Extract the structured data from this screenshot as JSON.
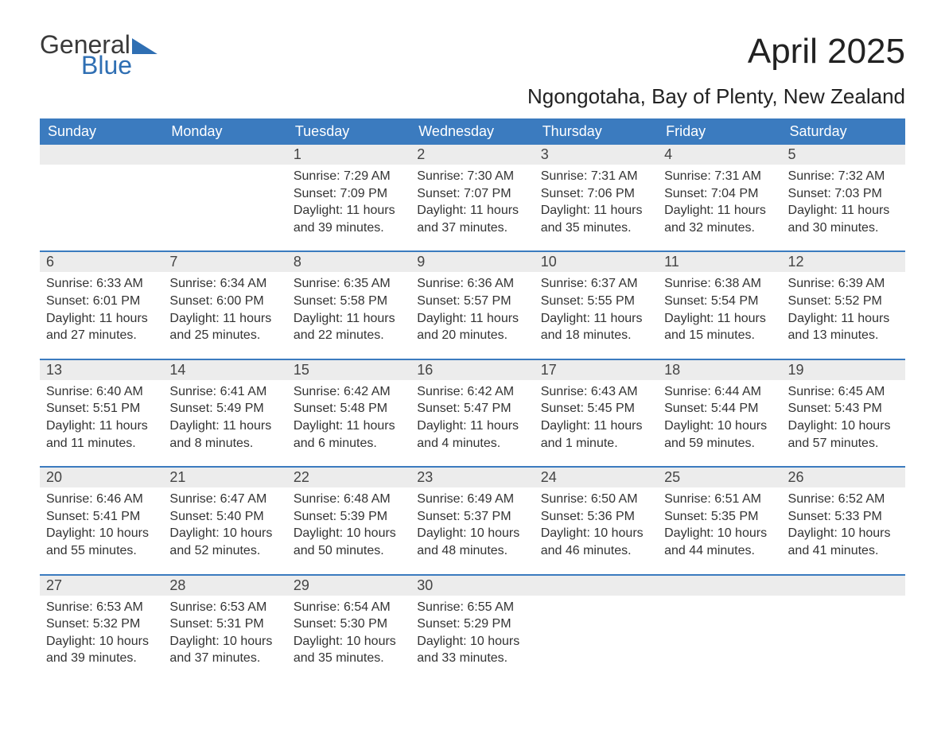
{
  "logo": {
    "text1": "General",
    "text2": "Blue"
  },
  "title": "April 2025",
  "subtitle": "Ngongotaha, Bay of Plenty, New Zealand",
  "colors": {
    "header_bg": "#3b7bbf",
    "header_text": "#ffffff",
    "daynum_bg": "#ececec",
    "row_border": "#3b7bbf",
    "body_text": "#333333",
    "logo_gray": "#3a3a3a",
    "logo_blue": "#2f6fb3",
    "page_bg": "#ffffff"
  },
  "typography": {
    "title_fontsize": 44,
    "subtitle_fontsize": 26,
    "header_fontsize": 18,
    "daynum_fontsize": 18,
    "cell_fontsize": 16,
    "logo_fontsize": 32
  },
  "day_headers": [
    "Sunday",
    "Monday",
    "Tuesday",
    "Wednesday",
    "Thursday",
    "Friday",
    "Saturday"
  ],
  "weeks": [
    [
      null,
      null,
      {
        "n": "1",
        "sr": "7:29 AM",
        "ss": "7:09 PM",
        "dl": "11 hours and 39 minutes."
      },
      {
        "n": "2",
        "sr": "7:30 AM",
        "ss": "7:07 PM",
        "dl": "11 hours and 37 minutes."
      },
      {
        "n": "3",
        "sr": "7:31 AM",
        "ss": "7:06 PM",
        "dl": "11 hours and 35 minutes."
      },
      {
        "n": "4",
        "sr": "7:31 AM",
        "ss": "7:04 PM",
        "dl": "11 hours and 32 minutes."
      },
      {
        "n": "5",
        "sr": "7:32 AM",
        "ss": "7:03 PM",
        "dl": "11 hours and 30 minutes."
      }
    ],
    [
      {
        "n": "6",
        "sr": "6:33 AM",
        "ss": "6:01 PM",
        "dl": "11 hours and 27 minutes."
      },
      {
        "n": "7",
        "sr": "6:34 AM",
        "ss": "6:00 PM",
        "dl": "11 hours and 25 minutes."
      },
      {
        "n": "8",
        "sr": "6:35 AM",
        "ss": "5:58 PM",
        "dl": "11 hours and 22 minutes."
      },
      {
        "n": "9",
        "sr": "6:36 AM",
        "ss": "5:57 PM",
        "dl": "11 hours and 20 minutes."
      },
      {
        "n": "10",
        "sr": "6:37 AM",
        "ss": "5:55 PM",
        "dl": "11 hours and 18 minutes."
      },
      {
        "n": "11",
        "sr": "6:38 AM",
        "ss": "5:54 PM",
        "dl": "11 hours and 15 minutes."
      },
      {
        "n": "12",
        "sr": "6:39 AM",
        "ss": "5:52 PM",
        "dl": "11 hours and 13 minutes."
      }
    ],
    [
      {
        "n": "13",
        "sr": "6:40 AM",
        "ss": "5:51 PM",
        "dl": "11 hours and 11 minutes."
      },
      {
        "n": "14",
        "sr": "6:41 AM",
        "ss": "5:49 PM",
        "dl": "11 hours and 8 minutes."
      },
      {
        "n": "15",
        "sr": "6:42 AM",
        "ss": "5:48 PM",
        "dl": "11 hours and 6 minutes."
      },
      {
        "n": "16",
        "sr": "6:42 AM",
        "ss": "5:47 PM",
        "dl": "11 hours and 4 minutes."
      },
      {
        "n": "17",
        "sr": "6:43 AM",
        "ss": "5:45 PM",
        "dl": "11 hours and 1 minute."
      },
      {
        "n": "18",
        "sr": "6:44 AM",
        "ss": "5:44 PM",
        "dl": "10 hours and 59 minutes."
      },
      {
        "n": "19",
        "sr": "6:45 AM",
        "ss": "5:43 PM",
        "dl": "10 hours and 57 minutes."
      }
    ],
    [
      {
        "n": "20",
        "sr": "6:46 AM",
        "ss": "5:41 PM",
        "dl": "10 hours and 55 minutes."
      },
      {
        "n": "21",
        "sr": "6:47 AM",
        "ss": "5:40 PM",
        "dl": "10 hours and 52 minutes."
      },
      {
        "n": "22",
        "sr": "6:48 AM",
        "ss": "5:39 PM",
        "dl": "10 hours and 50 minutes."
      },
      {
        "n": "23",
        "sr": "6:49 AM",
        "ss": "5:37 PM",
        "dl": "10 hours and 48 minutes."
      },
      {
        "n": "24",
        "sr": "6:50 AM",
        "ss": "5:36 PM",
        "dl": "10 hours and 46 minutes."
      },
      {
        "n": "25",
        "sr": "6:51 AM",
        "ss": "5:35 PM",
        "dl": "10 hours and 44 minutes."
      },
      {
        "n": "26",
        "sr": "6:52 AM",
        "ss": "5:33 PM",
        "dl": "10 hours and 41 minutes."
      }
    ],
    [
      {
        "n": "27",
        "sr": "6:53 AM",
        "ss": "5:32 PM",
        "dl": "10 hours and 39 minutes."
      },
      {
        "n": "28",
        "sr": "6:53 AM",
        "ss": "5:31 PM",
        "dl": "10 hours and 37 minutes."
      },
      {
        "n": "29",
        "sr": "6:54 AM",
        "ss": "5:30 PM",
        "dl": "10 hours and 35 minutes."
      },
      {
        "n": "30",
        "sr": "6:55 AM",
        "ss": "5:29 PM",
        "dl": "10 hours and 33 minutes."
      },
      null,
      null,
      null
    ]
  ],
  "labels": {
    "sunrise": "Sunrise:",
    "sunset": "Sunset:",
    "daylight": "Daylight:"
  }
}
